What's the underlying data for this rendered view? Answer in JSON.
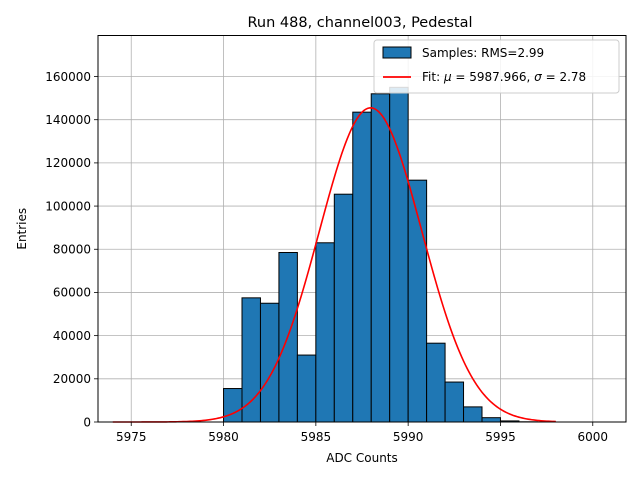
{
  "chart_data": {
    "type": "bar",
    "title": "Run 488, channel003, Pedestal",
    "xlabel": "ADC Counts",
    "ylabel": "Entries",
    "xlim": [
      5973.2,
      6001.8
    ],
    "ylim": [
      0,
      179000
    ],
    "grid": true,
    "legend_position": "top-right",
    "x_ticks": [
      5975,
      5980,
      5985,
      5990,
      5995,
      6000
    ],
    "y_ticks": [
      0,
      20000,
      40000,
      60000,
      80000,
      100000,
      120000,
      140000,
      160000
    ],
    "histogram": {
      "name": "Samples: RMS=2.99",
      "bin_width": 1,
      "bins": [
        {
          "left": 5980,
          "count": 15500
        },
        {
          "left": 5981,
          "count": 57500
        },
        {
          "left": 5982,
          "count": 55000
        },
        {
          "left": 5983,
          "count": 78500
        },
        {
          "left": 5984,
          "count": 31000
        },
        {
          "left": 5985,
          "count": 83000
        },
        {
          "left": 5986,
          "count": 105500
        },
        {
          "left": 5987,
          "count": 143500
        },
        {
          "left": 5988,
          "count": 152000
        },
        {
          "left": 5989,
          "count": 155000
        },
        {
          "left": 5990,
          "count": 112000
        },
        {
          "left": 5991,
          "count": 36500
        },
        {
          "left": 5992,
          "count": 18500
        },
        {
          "left": 5993,
          "count": 7000
        },
        {
          "left": 5994,
          "count": 2000
        },
        {
          "left": 5995,
          "count": 500
        },
        {
          "left": 5996,
          "count": 100
        }
      ],
      "color": "#1f77b4",
      "edge_color": "#000000"
    },
    "fit": {
      "name_prefix": "Fit: ",
      "mu_symbol": "μ",
      "mu_text": " = 5987.966, ",
      "sigma_symbol": "σ",
      "sigma_text": " = 2.78",
      "mu": 5987.966,
      "sigma": 2.78,
      "amplitude": 145500,
      "x_range": [
        5974,
        5998
      ],
      "color": "#ff0000"
    }
  }
}
